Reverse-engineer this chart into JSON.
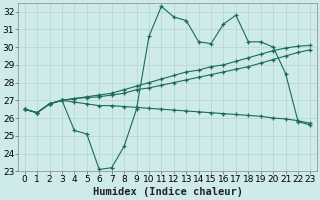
{
  "xlabel": "Humidex (Indice chaleur)",
  "background_color": "#ceeaea",
  "grid_color": "#b8d8d8",
  "line_color": "#1a6b5a",
  "x_values": [
    0,
    1,
    2,
    3,
    4,
    5,
    6,
    7,
    8,
    9,
    10,
    11,
    12,
    13,
    14,
    15,
    16,
    17,
    18,
    19,
    20,
    21,
    22,
    23
  ],
  "series1": [
    26.5,
    26.3,
    26.8,
    27.0,
    25.3,
    25.1,
    23.1,
    23.2,
    24.4,
    26.5,
    30.6,
    32.3,
    31.7,
    31.5,
    30.3,
    30.2,
    31.3,
    31.8,
    30.3,
    30.3,
    30.0,
    28.5,
    25.8,
    25.6
  ],
  "series2": [
    26.5,
    26.3,
    26.8,
    27.0,
    27.1,
    27.2,
    27.3,
    27.4,
    27.6,
    27.8,
    28.0,
    28.2,
    28.4,
    28.6,
    28.7,
    28.9,
    29.0,
    29.2,
    29.4,
    29.6,
    29.8,
    29.95,
    30.05,
    30.1
  ],
  "series3": [
    26.5,
    26.3,
    26.8,
    27.0,
    27.1,
    27.15,
    27.2,
    27.3,
    27.4,
    27.6,
    27.7,
    27.85,
    28.0,
    28.15,
    28.3,
    28.45,
    28.6,
    28.75,
    28.9,
    29.1,
    29.3,
    29.5,
    29.7,
    29.85
  ],
  "series4": [
    26.5,
    26.3,
    26.8,
    27.0,
    26.9,
    26.8,
    26.7,
    26.7,
    26.65,
    26.6,
    26.55,
    26.5,
    26.45,
    26.4,
    26.35,
    26.3,
    26.25,
    26.2,
    26.15,
    26.1,
    26.0,
    25.95,
    25.85,
    25.7
  ],
  "ylim": [
    23,
    32.5
  ],
  "xlim": [
    -0.5,
    23.5
  ],
  "yticks": [
    23,
    24,
    25,
    26,
    27,
    28,
    29,
    30,
    31,
    32
  ],
  "xticks": [
    0,
    1,
    2,
    3,
    4,
    5,
    6,
    7,
    8,
    9,
    10,
    11,
    12,
    13,
    14,
    15,
    16,
    17,
    18,
    19,
    20,
    21,
    22,
    23
  ],
  "fontsize_ticks": 6.5,
  "fontsize_label": 7.5
}
